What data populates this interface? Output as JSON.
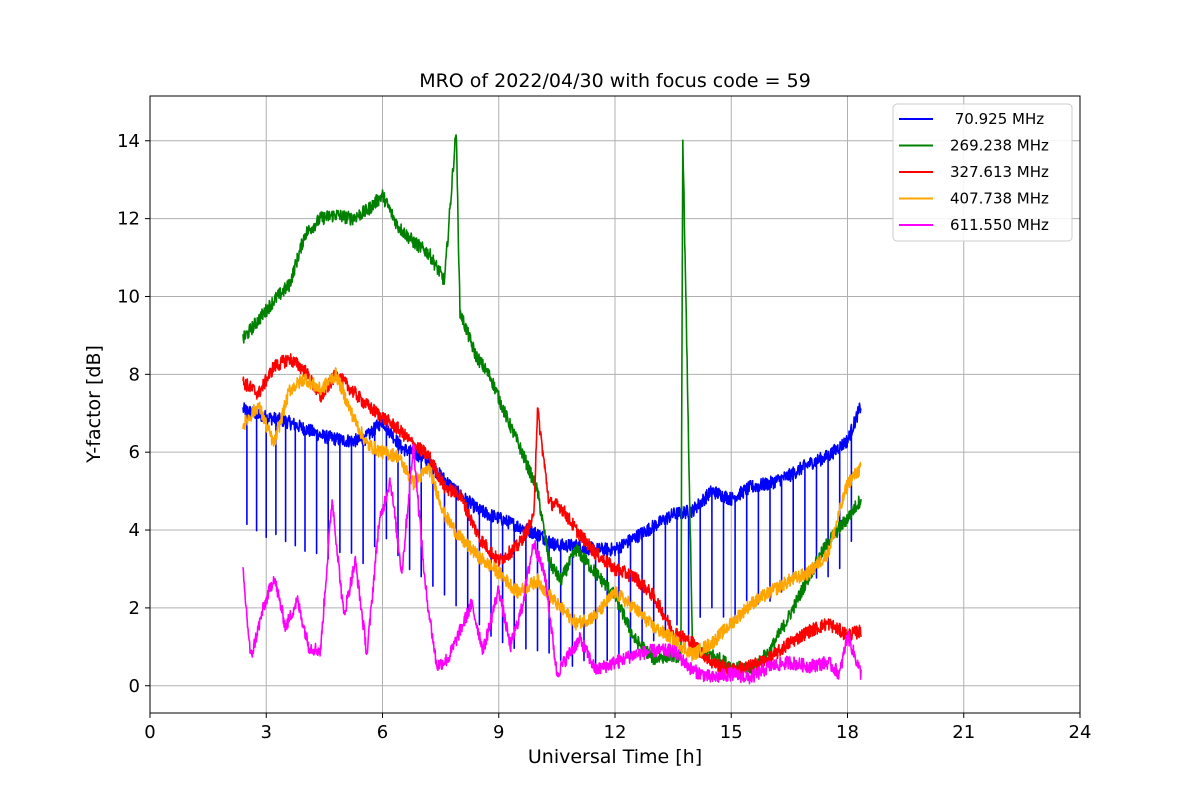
{
  "chart_data": {
    "type": "line",
    "title": "MRO of 2022/04/30 with focus code = 59",
    "xlabel": "Universal Time [h]",
    "ylabel": "Y-factor [dB]",
    "xlim": [
      0,
      24
    ],
    "ylim": [
      -0.7,
      15.15
    ],
    "xticks": [
      0,
      3,
      6,
      9,
      12,
      15,
      18,
      21,
      24
    ],
    "yticks": [
      0,
      2,
      4,
      6,
      8,
      10,
      12,
      14
    ],
    "grid": true,
    "legend_position": "top-right",
    "series": [
      {
        "name": " 70.925 MHz",
        "color": "#0000ff",
        "x": [
          2.4,
          3.0,
          3.5,
          4.0,
          4.5,
          5.0,
          5.5,
          6.0,
          6.5,
          7.0,
          7.5,
          8.0,
          8.5,
          9.0,
          9.5,
          10.0,
          10.5,
          11.0,
          11.5,
          12.0,
          12.5,
          13.0,
          13.5,
          14.0,
          14.5,
          15.0,
          15.5,
          16.0,
          16.5,
          17.0,
          17.5,
          18.0,
          18.35
        ],
        "y": [
          7.1,
          6.9,
          6.8,
          6.6,
          6.4,
          6.3,
          6.3,
          6.8,
          6.1,
          5.9,
          5.4,
          4.9,
          4.5,
          4.3,
          4.1,
          3.9,
          3.6,
          3.6,
          3.5,
          3.5,
          3.8,
          4.1,
          4.4,
          4.5,
          5.0,
          4.8,
          5.1,
          5.2,
          5.4,
          5.7,
          5.9,
          6.3,
          7.2
        ],
        "dips": [
          2.5,
          2.75,
          3.0,
          3.25,
          3.5,
          3.75,
          4.0,
          4.3,
          4.6,
          4.9,
          5.2,
          5.5,
          5.8,
          6.1,
          6.4,
          6.7,
          7.0,
          7.3,
          7.6,
          7.9,
          8.2,
          8.5,
          8.8,
          9.1,
          9.4,
          9.7,
          10.0,
          10.3,
          10.6,
          10.9,
          11.2,
          11.5,
          11.8,
          12.1,
          12.4,
          12.7,
          13.0,
          13.3,
          13.6,
          13.9,
          14.2,
          14.5,
          14.8,
          15.1,
          15.4,
          15.7,
          16.0,
          16.3,
          16.6,
          16.9,
          17.2,
          17.5,
          17.8,
          18.1
        ],
        "dip_depth": 3.0
      },
      {
        "name": "269.238 MHz",
        "color": "#008000",
        "x": [
          2.4,
          2.8,
          3.2,
          3.6,
          4.0,
          4.4,
          4.8,
          5.2,
          5.6,
          6.0,
          6.4,
          6.8,
          7.2,
          7.6,
          7.9,
          8.0,
          8.4,
          8.8,
          9.2,
          9.6,
          10.0,
          10.3,
          10.6,
          11.0,
          11.5,
          12.0,
          12.5,
          13.0,
          13.5,
          13.7,
          13.75,
          14.0,
          14.5,
          15.0,
          15.5,
          16.0,
          16.5,
          17.0,
          17.5,
          18.0,
          18.35
        ],
        "y": [
          8.9,
          9.4,
          9.9,
          10.3,
          11.6,
          12.0,
          12.1,
          12.0,
          12.2,
          12.6,
          11.8,
          11.4,
          11.1,
          10.4,
          14.3,
          9.6,
          8.5,
          7.9,
          6.9,
          6.0,
          5.0,
          3.2,
          2.7,
          3.5,
          2.9,
          2.3,
          1.2,
          0.7,
          0.8,
          0.7,
          14.1,
          0.9,
          0.8,
          0.5,
          0.4,
          0.9,
          1.8,
          2.8,
          3.7,
          4.3,
          4.8
        ]
      },
      {
        "name": "327.613 MHz",
        "color": "#ff0000",
        "x": [
          2.4,
          2.8,
          3.2,
          3.6,
          4.0,
          4.4,
          4.8,
          5.2,
          5.6,
          6.0,
          6.4,
          6.8,
          7.2,
          7.6,
          8.0,
          8.5,
          9.0,
          9.5,
          9.9,
          10.0,
          10.3,
          10.6,
          11.0,
          11.5,
          12.0,
          12.5,
          13.0,
          13.5,
          14.0,
          14.5,
          15.0,
          15.5,
          16.0,
          16.5,
          17.0,
          17.5,
          18.0,
          18.35
        ],
        "y": [
          7.8,
          7.5,
          8.2,
          8.4,
          8.1,
          7.4,
          8.0,
          7.6,
          7.2,
          6.9,
          6.6,
          6.2,
          5.9,
          5.1,
          4.9,
          3.8,
          3.2,
          3.6,
          4.3,
          7.1,
          4.7,
          4.6,
          4.0,
          3.4,
          3.0,
          2.8,
          2.3,
          1.4,
          1.1,
          0.6,
          0.4,
          0.5,
          0.7,
          1.1,
          1.4,
          1.6,
          1.3,
          1.4
        ]
      },
      {
        "name": "407.738 MHz",
        "color": "#ffa500",
        "x": [
          2.4,
          2.8,
          3.2,
          3.6,
          4.0,
          4.4,
          4.8,
          5.2,
          5.6,
          6.0,
          6.4,
          6.8,
          7.2,
          7.6,
          8.0,
          8.5,
          9.0,
          9.5,
          10.0,
          10.5,
          11.0,
          11.5,
          12.0,
          12.5,
          13.0,
          13.5,
          14.0,
          14.5,
          15.0,
          15.5,
          16.0,
          16.5,
          17.0,
          17.5,
          18.0,
          18.35
        ],
        "y": [
          6.7,
          7.2,
          6.2,
          7.6,
          7.9,
          7.6,
          8.0,
          7.0,
          6.2,
          6.0,
          5.9,
          5.2,
          5.6,
          4.4,
          3.8,
          3.3,
          2.9,
          2.4,
          2.7,
          2.1,
          1.6,
          1.8,
          2.4,
          2.0,
          1.5,
          1.2,
          0.8,
          1.1,
          1.6,
          2.1,
          2.4,
          2.7,
          2.9,
          3.4,
          5.2,
          5.6
        ]
      },
      {
        "name": "611.550 MHz",
        "color": "#ff00ff",
        "x": [
          2.4,
          2.6,
          2.9,
          3.2,
          3.5,
          3.8,
          4.1,
          4.4,
          4.7,
          5.0,
          5.3,
          5.6,
          5.9,
          6.2,
          6.5,
          6.8,
          7.1,
          7.4,
          7.7,
          8.0,
          8.3,
          8.6,
          9.0,
          9.3,
          9.6,
          9.9,
          10.2,
          10.5,
          10.8,
          11.1,
          11.5,
          12.0,
          12.5,
          13.0,
          13.5,
          14.0,
          14.5,
          15.0,
          15.5,
          16.0,
          16.5,
          17.0,
          17.5,
          17.8,
          18.0,
          18.35
        ],
        "y": [
          2.9,
          0.7,
          1.9,
          2.8,
          1.5,
          2.2,
          1.0,
          0.9,
          4.8,
          1.8,
          3.2,
          0.8,
          4.1,
          5.3,
          2.9,
          6.2,
          2.6,
          0.5,
          0.7,
          1.4,
          2.1,
          0.9,
          2.5,
          1.0,
          2.0,
          3.7,
          2.8,
          0.3,
          0.8,
          1.2,
          0.4,
          0.6,
          0.8,
          0.9,
          0.9,
          0.4,
          0.2,
          0.3,
          0.2,
          0.5,
          0.6,
          0.5,
          0.6,
          0.3,
          1.3,
          0.3
        ]
      }
    ]
  }
}
